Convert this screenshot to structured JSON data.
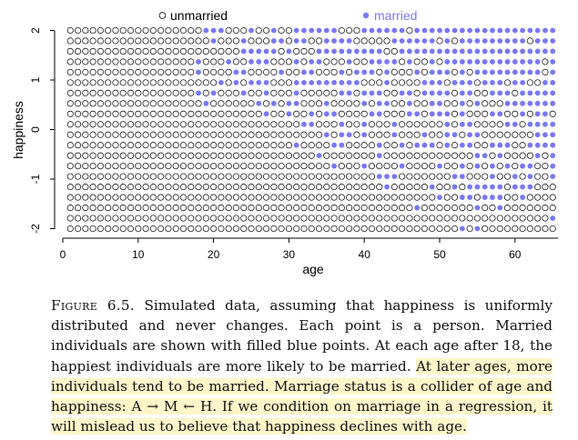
{
  "figure": {
    "label": "Figure 6.5.",
    "caption_plain": " Simulated data, assuming that happiness is uniformly distributed and never changes. Each point is a person. Married individuals are shown with filled blue points. At each age after 18, the happiest individuals are more likely to be married.",
    "caption_highlighted": "At later ages, more individuals tend to be married. Marriage status is a collider of age and happiness: A → M ← H. If we condition on marriage in a regression, it will mislead us to believe that happiness declines with age.",
    "highlight_color": "#fdf6c9"
  },
  "chart_data": {
    "type": "scatter",
    "xlabel": "age",
    "ylabel": "happiness",
    "xlim": [
      0,
      66
    ],
    "ylim": [
      -2.1,
      2.1
    ],
    "xticks": [
      "0",
      "10",
      "20",
      "30",
      "40",
      "50",
      "60"
    ],
    "yticks": [
      "-2",
      "-1",
      "0",
      "1",
      "2"
    ],
    "grid": false,
    "legend_position": "top",
    "series": [
      {
        "name": "unmarried",
        "marker": "open-circle",
        "color": "#000000"
      },
      {
        "name": "married",
        "marker": "filled-circle",
        "color": "#7878f0"
      }
    ],
    "ages": [
      1,
      65
    ],
    "happiness_levels": 20,
    "happiness_range": [
      -2,
      2
    ],
    "marriage_start_age": 18,
    "point_rule": "one point per person at each integer age 1-65 and each of 20 happiness levels; married if filled"
  }
}
